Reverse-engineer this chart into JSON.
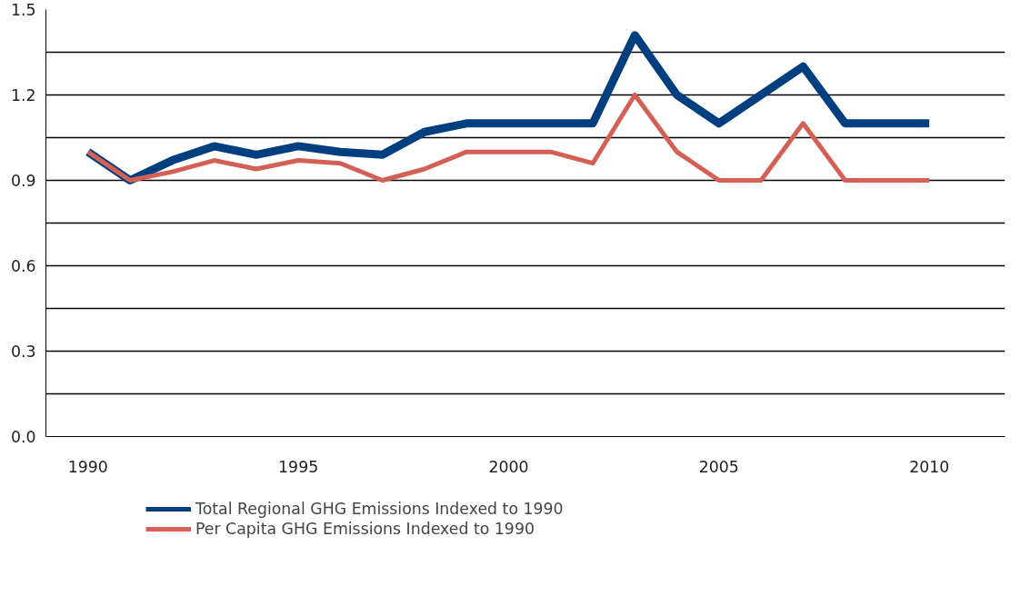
{
  "chart_data": {
    "type": "line",
    "x": [
      1990,
      1991,
      1992,
      1993,
      1994,
      1995,
      1996,
      1997,
      1998,
      1999,
      2000,
      2001,
      2002,
      2003,
      2004,
      2005,
      2006,
      2007,
      2008,
      2009,
      2010
    ],
    "series": [
      {
        "name": "Total Regional GHG Emissions Indexed to 1990",
        "color": "#003f7f",
        "values": [
          1.0,
          0.9,
          0.97,
          1.02,
          0.99,
          1.02,
          1.0,
          0.99,
          1.07,
          1.1,
          1.1,
          1.1,
          1.1,
          1.41,
          1.2,
          1.1,
          1.2,
          1.3,
          1.1,
          1.1,
          1.1
        ]
      },
      {
        "name": "Per Capita GHG Emissions Indexed to 1990",
        "color": "#d45f55",
        "values": [
          1.0,
          0.9,
          0.93,
          0.97,
          0.94,
          0.97,
          0.96,
          0.9,
          0.94,
          1.0,
          1.0,
          1.0,
          0.96,
          1.2,
          1.0,
          0.9,
          0.9,
          1.1,
          0.9,
          0.9,
          0.9
        ]
      }
    ],
    "xlim": [
      1989,
      2011.8
    ],
    "xticks": [
      1990,
      1995,
      2000,
      2005,
      2010
    ],
    "ylim": [
      0,
      1.5
    ],
    "yticks": [
      {
        "value": 0,
        "label": "0.0"
      },
      {
        "value": 0.15,
        "label": null
      },
      {
        "value": 0.3,
        "label": "0.3"
      },
      {
        "value": 0.45,
        "label": null
      },
      {
        "value": 0.6,
        "label": "0.6"
      },
      {
        "value": 0.75,
        "label": null
      },
      {
        "value": 0.9,
        "label": "0.9"
      },
      {
        "value": 1.05,
        "label": null
      },
      {
        "value": 1.2,
        "label": "1.2"
      },
      {
        "value": 1.35,
        "label": null
      },
      {
        "value": 1.5,
        "label": "1.5"
      }
    ],
    "grid": "y",
    "legend": "bottom",
    "marker": "none",
    "line_style": "solid"
  }
}
